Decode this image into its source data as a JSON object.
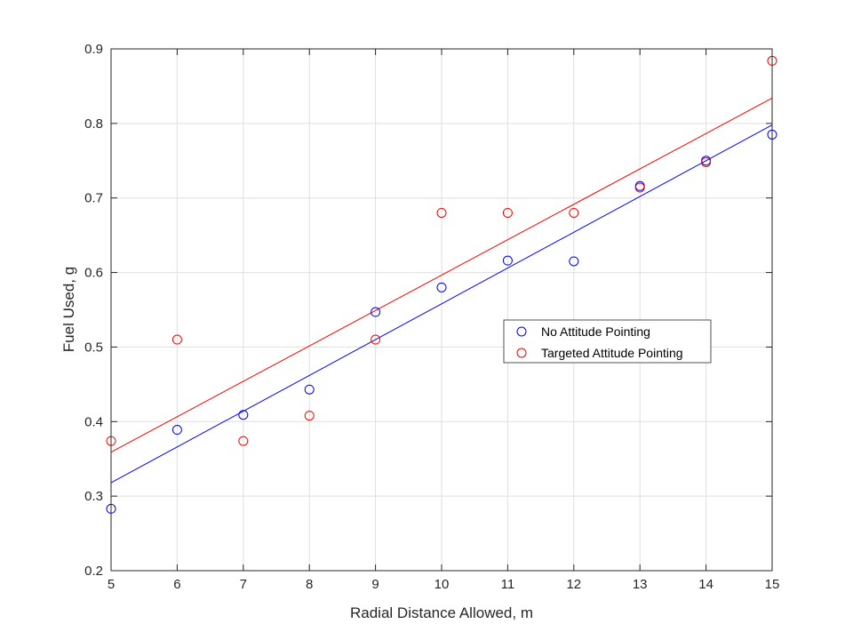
{
  "chart_data": {
    "type": "scatter",
    "xlabel": "Radial Distance Allowed, m",
    "ylabel": "Fuel Used, g",
    "xlim": [
      5,
      15
    ],
    "ylim": [
      0.2,
      0.9
    ],
    "xticks": [
      5,
      6,
      7,
      8,
      9,
      10,
      11,
      12,
      13,
      14,
      15
    ],
    "yticks": [
      0.2,
      0.3,
      0.4,
      0.5,
      0.6,
      0.7,
      0.8,
      0.9
    ],
    "grid": true,
    "legend_position": "center-right",
    "series": [
      {
        "name": "No Attitude Pointing",
        "color": "#0000ff",
        "marker": "circle",
        "points": [
          {
            "x": 5,
            "y": 0.283
          },
          {
            "x": 6,
            "y": 0.389
          },
          {
            "x": 7,
            "y": 0.409
          },
          {
            "x": 8,
            "y": 0.443
          },
          {
            "x": 9,
            "y": 0.547
          },
          {
            "x": 10,
            "y": 0.58
          },
          {
            "x": 11,
            "y": 0.616
          },
          {
            "x": 12,
            "y": 0.615
          },
          {
            "x": 13,
            "y": 0.716
          },
          {
            "x": 14,
            "y": 0.75
          },
          {
            "x": 15,
            "y": 0.785
          }
        ],
        "fit_line": [
          {
            "x": 5,
            "y": 0.318
          },
          {
            "x": 15,
            "y": 0.798
          }
        ]
      },
      {
        "name": "Targeted Attitude Pointing",
        "color": "#ff0000",
        "marker": "circle",
        "points": [
          {
            "x": 5,
            "y": 0.374
          },
          {
            "x": 6,
            "y": 0.51
          },
          {
            "x": 7,
            "y": 0.374
          },
          {
            "x": 8,
            "y": 0.408
          },
          {
            "x": 9,
            "y": 0.51
          },
          {
            "x": 10,
            "y": 0.68
          },
          {
            "x": 11,
            "y": 0.68
          },
          {
            "x": 12,
            "y": 0.68
          },
          {
            "x": 13,
            "y": 0.714
          },
          {
            "x": 14,
            "y": 0.748
          },
          {
            "x": 15,
            "y": 0.884
          }
        ],
        "fit_line": [
          {
            "x": 5,
            "y": 0.359
          },
          {
            "x": 15,
            "y": 0.834
          }
        ]
      }
    ]
  }
}
